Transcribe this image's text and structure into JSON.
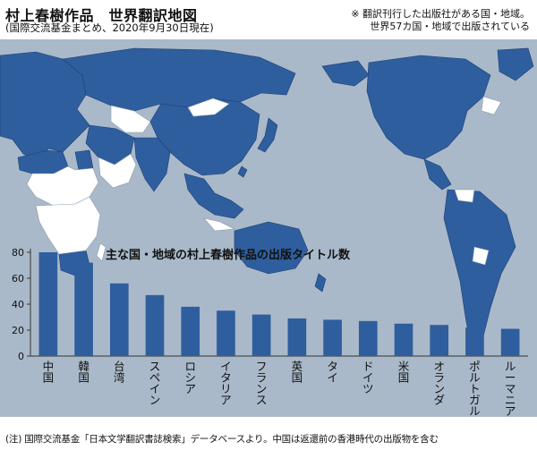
{
  "header": {
    "title": "村上春樹作品　世界翻訳地図",
    "subtitle": "(国際交流基金まとめ、2020年9月30日現在)",
    "note_line1": "※ 翻訳刊行した出版社がある国・地域。",
    "note_line2": "世界57カ国・地域で出版されている"
  },
  "colors": {
    "map_background": "#a9b9c9",
    "land_published": "#2f5e9e",
    "land_other": "#ffffff",
    "bar": "#2f5e9e"
  },
  "chart_data": {
    "type": "bar",
    "title": "主な国・地域の村上春樹作品の出版タイトル数",
    "categories": [
      "中国",
      "韓国",
      "台湾",
      "スペイン",
      "ロシア",
      "イタリア",
      "フランス",
      "英国",
      "タイ",
      "ドイツ",
      "米国",
      "オランダ",
      "ポルトガル",
      "ルーマニア"
    ],
    "values": [
      80,
      72,
      56,
      47,
      38,
      35,
      32,
      29,
      28,
      27,
      25,
      24,
      22,
      21
    ],
    "ylim": [
      0,
      80
    ],
    "yticks": [
      0,
      20,
      40,
      60,
      80
    ],
    "grid": false
  },
  "footer": {
    "note": "(注) 国際交流基金「日本文学翻訳書誌検索」データベースより。中国は返還前の香港時代の出版物を含む"
  }
}
